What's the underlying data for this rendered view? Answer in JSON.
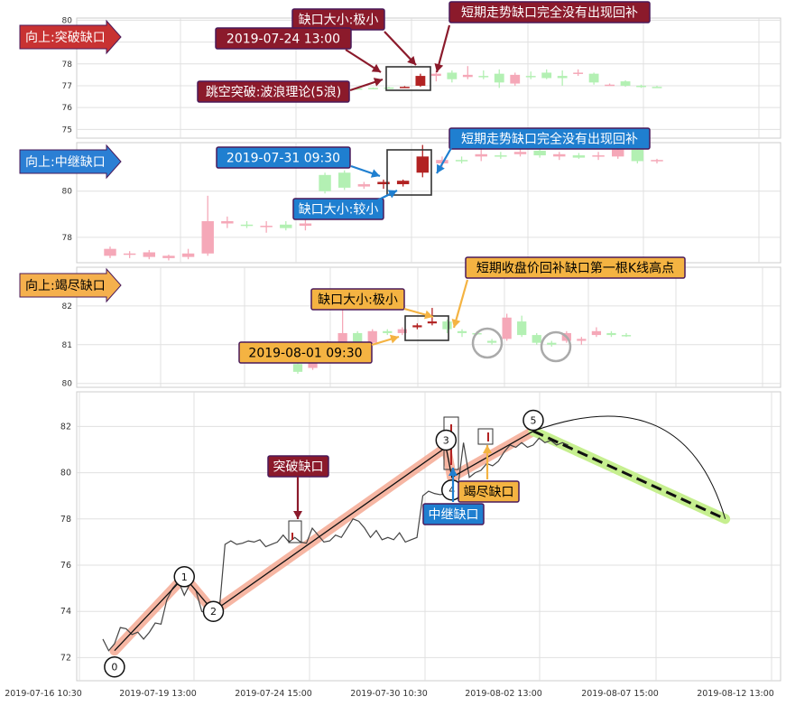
{
  "chart_data": [
    {
      "type": "candlestick",
      "panel": "breakaway",
      "label": "向上:突破缺口",
      "yticks": [
        75,
        76,
        77,
        78,
        79,
        80
      ],
      "ylim": [
        74.6,
        80.1
      ],
      "candles": [
        {
          "o": 76.88,
          "h": 76.9,
          "l": 76.84,
          "c": 76.86
        },
        {
          "o": 76.9,
          "h": 76.92,
          "l": 76.86,
          "c": 76.88
        },
        {
          "o": 76.92,
          "h": 76.95,
          "l": 76.88,
          "c": 76.9
        },
        {
          "o": 76.95,
          "h": 76.98,
          "l": 76.9,
          "c": 76.93
        },
        {
          "o": 77.0,
          "h": 77.55,
          "l": 76.95,
          "c": 77.45
        },
        {
          "o": 77.45,
          "h": 77.7,
          "l": 77.2,
          "c": 77.55
        },
        {
          "o": 77.6,
          "h": 77.7,
          "l": 77.15,
          "c": 77.3
        },
        {
          "o": 77.4,
          "h": 77.9,
          "l": 77.3,
          "c": 77.5
        },
        {
          "o": 77.45,
          "h": 77.7,
          "l": 77.3,
          "c": 77.4
        },
        {
          "o": 77.55,
          "h": 77.75,
          "l": 76.9,
          "c": 77.15
        },
        {
          "o": 77.1,
          "h": 77.6,
          "l": 77.0,
          "c": 77.5
        },
        {
          "o": 77.45,
          "h": 77.65,
          "l": 77.3,
          "c": 77.4
        },
        {
          "o": 77.6,
          "h": 77.75,
          "l": 77.3,
          "c": 77.35
        },
        {
          "o": 77.45,
          "h": 77.7,
          "l": 77.0,
          "c": 77.35
        },
        {
          "o": 77.55,
          "h": 77.75,
          "l": 77.45,
          "c": 77.6
        },
        {
          "o": 77.55,
          "h": 77.6,
          "l": 77.05,
          "c": 77.15
        },
        {
          "o": 77.05,
          "h": 77.1,
          "l": 77.0,
          "c": 77.05
        },
        {
          "o": 77.2,
          "h": 77.25,
          "l": 76.95,
          "c": 77.0
        },
        {
          "o": 77.0,
          "h": 77.05,
          "l": 76.9,
          "c": 76.95
        },
        {
          "o": 76.95,
          "h": 77.0,
          "l": 76.9,
          "c": 76.92
        }
      ],
      "annotations": [
        "2019-07-24 13:00",
        "缺口大小:极小",
        "短期走势缺口完全没有出现回补",
        "跳空突破:波浪理论(5浪)"
      ]
    },
    {
      "type": "candlestick",
      "panel": "runaway",
      "label": "向上:中继缺口",
      "yticks": [
        78,
        80
      ],
      "ylim": [
        76.9,
        82.1
      ],
      "candles": [
        {
          "o": 77.2,
          "h": 77.6,
          "l": 77.1,
          "c": 77.5
        },
        {
          "o": 77.25,
          "h": 77.4,
          "l": 77.1,
          "c": 77.3
        },
        {
          "o": 77.15,
          "h": 77.45,
          "l": 77.05,
          "c": 77.35
        },
        {
          "o": 77.1,
          "h": 77.25,
          "l": 77.0,
          "c": 77.2
        },
        {
          "o": 77.15,
          "h": 77.5,
          "l": 77.05,
          "c": 77.3
        },
        {
          "o": 77.3,
          "h": 79.8,
          "l": 77.2,
          "c": 78.7
        },
        {
          "o": 78.6,
          "h": 78.9,
          "l": 78.4,
          "c": 78.7
        },
        {
          "o": 78.55,
          "h": 78.7,
          "l": 78.4,
          "c": 78.5
        },
        {
          "o": 78.45,
          "h": 78.7,
          "l": 78.2,
          "c": 78.5
        },
        {
          "o": 78.55,
          "h": 78.7,
          "l": 78.3,
          "c": 78.4
        },
        {
          "o": 78.5,
          "h": 78.8,
          "l": 78.3,
          "c": 78.6
        },
        {
          "o": 80.7,
          "h": 80.8,
          "l": 79.9,
          "c": 80.0
        },
        {
          "o": 80.8,
          "h": 80.9,
          "l": 80.05,
          "c": 80.15
        },
        {
          "o": 80.2,
          "h": 80.4,
          "l": 80.1,
          "c": 80.3
        },
        {
          "o": 80.4,
          "h": 80.5,
          "l": 80.1,
          "c": 80.3
        },
        {
          "o": 80.3,
          "h": 80.5,
          "l": 80.2,
          "c": 80.45
        },
        {
          "o": 80.8,
          "h": 82.0,
          "l": 80.6,
          "c": 81.5
        },
        {
          "o": 81.2,
          "h": 81.5,
          "l": 81.0,
          "c": 81.35
        },
        {
          "o": 81.35,
          "h": 81.5,
          "l": 81.2,
          "c": 81.3
        },
        {
          "o": 81.5,
          "h": 81.9,
          "l": 81.3,
          "c": 81.6
        },
        {
          "o": 81.55,
          "h": 81.7,
          "l": 81.4,
          "c": 81.5
        },
        {
          "o": 81.6,
          "h": 81.9,
          "l": 81.5,
          "c": 81.7
        },
        {
          "o": 81.75,
          "h": 81.9,
          "l": 81.45,
          "c": 81.55
        },
        {
          "o": 81.5,
          "h": 81.7,
          "l": 81.35,
          "c": 81.6
        },
        {
          "o": 81.55,
          "h": 81.65,
          "l": 81.4,
          "c": 81.45
        },
        {
          "o": 81.5,
          "h": 81.7,
          "l": 81.35,
          "c": 81.55
        },
        {
          "o": 81.5,
          "h": 81.9,
          "l": 81.4,
          "c": 81.8
        },
        {
          "o": 81.8,
          "h": 81.85,
          "l": 81.2,
          "c": 81.3
        },
        {
          "o": 81.3,
          "h": 81.4,
          "l": 81.2,
          "c": 81.35
        }
      ],
      "annotations": [
        "2019-07-31 09:30",
        "缺口大小:较小",
        "短期走势缺口完全没有出现回补"
      ]
    },
    {
      "type": "candlestick",
      "panel": "exhaustion",
      "label": "向上:竭尽缺口",
      "yticks": [
        80,
        81,
        82
      ],
      "ylim": [
        79.9,
        83.0
      ],
      "candles": [
        {
          "o": 80.5,
          "h": 80.55,
          "l": 80.25,
          "c": 80.3
        },
        {
          "o": 80.4,
          "h": 80.6,
          "l": 80.35,
          "c": 80.55
        },
        {
          "o": 80.6,
          "h": 81.1,
          "l": 80.55,
          "c": 81.0
        },
        {
          "o": 81.0,
          "h": 82.2,
          "l": 80.95,
          "c": 81.3
        },
        {
          "o": 81.3,
          "h": 81.35,
          "l": 80.9,
          "c": 81.05
        },
        {
          "o": 81.05,
          "h": 81.4,
          "l": 81.0,
          "c": 81.35
        },
        {
          "o": 81.35,
          "h": 81.4,
          "l": 81.25,
          "c": 81.3
        },
        {
          "o": 81.3,
          "h": 81.45,
          "l": 81.25,
          "c": 81.4
        },
        {
          "o": 81.45,
          "h": 81.55,
          "l": 81.4,
          "c": 81.5
        },
        {
          "o": 81.55,
          "h": 81.95,
          "l": 81.5,
          "c": 81.6
        },
        {
          "o": 81.6,
          "h": 81.65,
          "l": 81.3,
          "c": 81.4
        },
        {
          "o": 81.35,
          "h": 81.4,
          "l": 81.2,
          "c": 81.3
        },
        {
          "o": 81.3,
          "h": 81.35,
          "l": 81.25,
          "c": 81.28
        },
        {
          "o": 81.1,
          "h": 81.15,
          "l": 81.0,
          "c": 81.05
        },
        {
          "o": 81.15,
          "h": 81.8,
          "l": 81.1,
          "c": 81.7
        },
        {
          "o": 81.6,
          "h": 81.75,
          "l": 81.2,
          "c": 81.25
        },
        {
          "o": 81.25,
          "h": 81.3,
          "l": 81.0,
          "c": 81.05
        },
        {
          "o": 81.05,
          "h": 81.1,
          "l": 80.95,
          "c": 81.0
        },
        {
          "o": 81.1,
          "h": 81.35,
          "l": 81.05,
          "c": 81.3
        },
        {
          "o": 81.1,
          "h": 81.2,
          "l": 81.0,
          "c": 81.15
        },
        {
          "o": 81.25,
          "h": 81.45,
          "l": 81.2,
          "c": 81.35
        },
        {
          "o": 81.3,
          "h": 81.35,
          "l": 81.2,
          "c": 81.25
        },
        {
          "o": 81.25,
          "h": 81.3,
          "l": 81.2,
          "c": 81.22
        }
      ],
      "annotations": [
        "缺口大小:极小",
        "2019-08-01 09:30",
        "短期收盘价回补缺口第一根K线高点"
      ]
    },
    {
      "type": "line",
      "panel": "overview",
      "x_ticks": [
        "2019-07-16 10:30",
        "2019-07-19 13:00",
        "2019-07-24 15:00",
        "2019-07-30 10:30",
        "2019-08-02 13:00",
        "2019-08-07 15:00",
        "2019-08-12 13:00"
      ],
      "yticks": [
        72,
        74,
        76,
        78,
        80,
        82
      ],
      "ylim": [
        71.0,
        83.5
      ],
      "price": [
        72.8,
        72.3,
        72.6,
        73.3,
        73.25,
        73.0,
        73.1,
        72.8,
        73.1,
        73.5,
        73.45,
        74.5,
        75.0,
        75.3,
        74.7,
        75.2,
        74.9,
        74.0,
        73.9,
        74.1,
        74.0,
        76.9,
        77.05,
        76.9,
        76.95,
        77.05,
        77.0,
        77.1,
        76.8,
        76.9,
        77.0,
        77.3,
        77.0,
        77.2,
        77.0,
        76.95,
        77.6,
        77.3,
        77.0,
        77.05,
        77.3,
        77.2,
        77.6,
        78.0,
        77.9,
        77.6,
        77.2,
        77.5,
        77.1,
        77.2,
        77.1,
        77.4,
        77.0,
        77.1,
        77.2,
        79.0,
        79.2,
        79.1,
        79.05,
        79.1,
        79.4,
        79.3,
        81.3,
        79.8,
        80.0,
        80.1,
        80.4,
        80.3,
        80.5,
        80.9,
        81.2,
        81.1,
        81.3,
        81.1,
        81.2,
        81.5,
        81.3,
        81.4,
        81.2,
        81.3,
        81.2
      ],
      "zigzag": [
        {
          "label": "0",
          "x": 2,
          "y": 72.3
        },
        {
          "label": "1",
          "x": 14,
          "y": 75.5
        },
        {
          "label": "2",
          "x": 19,
          "y": 74.0
        },
        {
          "label": "3",
          "x": 59,
          "y": 81.1
        },
        {
          "label": "4",
          "x": 60,
          "y": 79.8
        },
        {
          "label": "5",
          "x": 74,
          "y": 81.8
        }
      ],
      "projection": {
        "from_x": 74,
        "from_y": 81.8,
        "to_x": 107,
        "to_y": 78.0
      },
      "gap_labels": [
        "突破缺口",
        "中继缺口",
        "竭尽缺口"
      ]
    }
  ],
  "colors": {
    "up_candle": "#f5a8b8",
    "down_candle": "#b3f0b3",
    "gap_candle": "#b22222",
    "breakaway_tag": "#c83232",
    "runaway_tag": "#2b7fd4",
    "exhaustion_tag": "#f5b04d",
    "label_dark": "#8b1a2b",
    "label_blue": "#1f7fd0",
    "label_orange": "#f4b342",
    "trend_fill": "#f4a48c",
    "proj_fill": "#c6ef8f"
  }
}
